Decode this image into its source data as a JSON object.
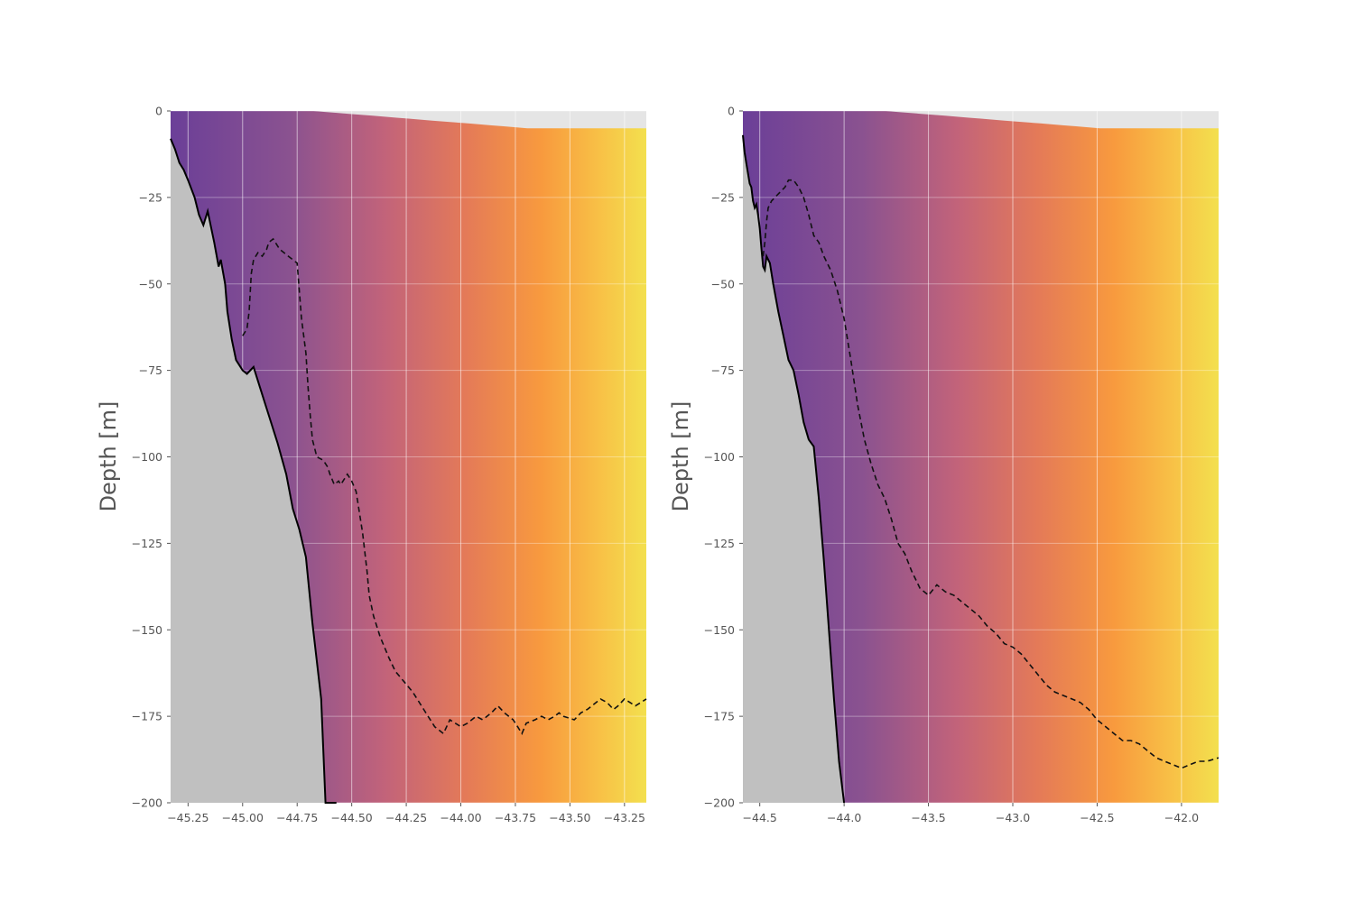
{
  "chart_data": [
    {
      "type": "heatmap",
      "title": "",
      "xlabel": "",
      "ylabel": "Depth [m]",
      "xlim": [
        -45.33,
        -43.15
      ],
      "ylim": [
        -200,
        0
      ],
      "grid": true,
      "colormap": "plasma-like (purple to orange to yellow)",
      "x_ticks": [
        -45.25,
        -45.0,
        -44.75,
        -44.5,
        -44.25,
        -44.0,
        -43.75,
        -43.5,
        -43.25
      ],
      "x_tick_labels": [
        "−45.25",
        "−45.00",
        "−44.75",
        "−44.50",
        "−44.25",
        "−44.00",
        "−43.75",
        "−43.50",
        "−43.25"
      ],
      "y_ticks": [
        0,
        -25,
        -50,
        -75,
        -100,
        -125,
        -150,
        -175,
        -200
      ],
      "y_tick_labels": [
        "0",
        "−25",
        "−50",
        "−75",
        "−100",
        "−125",
        "−150",
        "−175",
        "−200"
      ],
      "bathymetry_line": {
        "x": [
          -45.33,
          -45.31,
          -45.29,
          -45.27,
          -45.25,
          -45.22,
          -45.2,
          -45.18,
          -45.16,
          -45.15,
          -45.13,
          -45.11,
          -45.1,
          -45.08,
          -45.07,
          -45.05,
          -45.03,
          -45.01,
          -45.0,
          -44.98,
          -44.95,
          -44.92,
          -44.88,
          -44.84,
          -44.8,
          -44.77,
          -44.74,
          -44.71,
          -44.68,
          -44.64,
          -44.62,
          -44.6,
          -44.58,
          -44.57
        ],
        "y": [
          -8,
          -11,
          -15,
          -17,
          -20,
          -25,
          -30,
          -33,
          -29,
          -32,
          -38,
          -45,
          -43,
          -50,
          -58,
          -66,
          -72,
          -74,
          -75,
          -76,
          -74,
          -80,
          -88,
          -96,
          -105,
          -115,
          -121,
          -129,
          -148,
          -170,
          -200,
          -200,
          -200,
          -200
        ]
      },
      "isoline_dashed": {
        "x": [
          -45.0,
          -44.98,
          -44.97,
          -44.96,
          -44.95,
          -44.94,
          -44.93,
          -44.91,
          -44.89,
          -44.88,
          -44.86,
          -44.83,
          -44.79,
          -44.77,
          -44.75,
          -44.74,
          -44.73,
          -44.71,
          -44.7,
          -44.69,
          -44.68,
          -44.66,
          -44.63,
          -44.61,
          -44.6,
          -44.58,
          -44.56,
          -44.55,
          -44.52,
          -44.5,
          -44.48,
          -44.45,
          -44.43,
          -44.42,
          -44.4,
          -44.37,
          -44.33,
          -44.3,
          -44.26,
          -44.22,
          -44.17,
          -44.12,
          -44.08,
          -44.05,
          -44.0,
          -43.97,
          -43.93,
          -43.9,
          -43.86,
          -43.83,
          -43.8,
          -43.76,
          -43.74,
          -43.72,
          -43.7,
          -43.66,
          -43.63,
          -43.6,
          -43.57,
          -43.55,
          -43.53,
          -43.48,
          -43.45,
          -43.42,
          -43.4,
          -43.36,
          -43.33,
          -43.3,
          -43.28,
          -43.25,
          -43.2,
          -43.15
        ],
        "y": [
          -65,
          -63,
          -58,
          -47,
          -43,
          -42,
          -41,
          -42,
          -40,
          -38,
          -37,
          -40,
          -42,
          -43,
          -44,
          -52,
          -60,
          -70,
          -80,
          -88,
          -95,
          -100,
          -101,
          -103,
          -105,
          -108,
          -107,
          -108,
          -105,
          -107,
          -110,
          -122,
          -133,
          -140,
          -146,
          -152,
          -158,
          -162,
          -165,
          -168,
          -173,
          -178,
          -180,
          -176,
          -178,
          -177,
          -175,
          -176,
          -174,
          -172,
          -174,
          -176,
          -178,
          -180,
          -177,
          -176,
          -175,
          -176,
          -175,
          -174,
          -175,
          -176,
          -174,
          -173,
          -172,
          -170,
          -171,
          -173,
          -172,
          -170,
          -172,
          -170
        ]
      }
    },
    {
      "type": "heatmap",
      "title": "",
      "xlabel": "",
      "ylabel": "Depth [m]",
      "xlim": [
        -44.6,
        -41.78
      ],
      "ylim": [
        -200,
        0
      ],
      "grid": true,
      "colormap": "plasma-like (purple to orange to yellow)",
      "x_ticks": [
        -44.5,
        -44.0,
        -43.5,
        -43.0,
        -42.5,
        -42.0
      ],
      "x_tick_labels": [
        "−44.5",
        "−44.0",
        "−43.5",
        "−43.0",
        "−42.5",
        "−42.0"
      ],
      "y_ticks": [
        0,
        -25,
        -50,
        -75,
        -100,
        -125,
        -150,
        -175,
        -200
      ],
      "y_tick_labels": [
        "0",
        "−25",
        "−50",
        "−75",
        "−100",
        "−125",
        "−150",
        "−175",
        "−200"
      ],
      "bathymetry_line": {
        "x": [
          -44.6,
          -44.59,
          -44.58,
          -44.57,
          -44.56,
          -44.55,
          -44.54,
          -44.53,
          -44.52,
          -44.51,
          -44.5,
          -44.49,
          -44.48,
          -44.47,
          -44.46,
          -44.44,
          -44.42,
          -44.39,
          -44.36,
          -44.33,
          -44.3,
          -44.27,
          -44.24,
          -44.21,
          -44.18,
          -44.15,
          -44.12,
          -44.09,
          -44.06,
          -44.03,
          -44.0
        ],
        "y": [
          -7,
          -12,
          -15,
          -18,
          -21,
          -22,
          -26,
          -28,
          -27,
          -30,
          -34,
          -40,
          -45,
          -46,
          -42,
          -44,
          -50,
          -58,
          -65,
          -72,
          -75,
          -82,
          -90,
          -95,
          -97,
          -112,
          -130,
          -150,
          -170,
          -188,
          -200
        ]
      },
      "isoline_dashed": {
        "x": [
          -44.48,
          -44.47,
          -44.46,
          -44.45,
          -44.43,
          -44.41,
          -44.39,
          -44.37,
          -44.35,
          -44.33,
          -44.3,
          -44.27,
          -44.24,
          -44.21,
          -44.18,
          -44.15,
          -44.12,
          -44.08,
          -44.04,
          -44.0,
          -43.96,
          -43.92,
          -43.88,
          -43.84,
          -43.8,
          -43.76,
          -43.72,
          -43.68,
          -43.64,
          -43.6,
          -43.55,
          -43.5,
          -43.45,
          -43.4,
          -43.35,
          -43.3,
          -43.25,
          -43.2,
          -43.15,
          -43.1,
          -43.05,
          -43.0,
          -42.95,
          -42.9,
          -42.85,
          -42.8,
          -42.75,
          -42.7,
          -42.65,
          -42.6,
          -42.55,
          -42.5,
          -42.45,
          -42.4,
          -42.35,
          -42.3,
          -42.25,
          -42.2,
          -42.15,
          -42.1,
          -42.05,
          -42.0,
          -41.95,
          -41.9,
          -41.85,
          -41.78
        ],
        "y": [
          -42,
          -38,
          -32,
          -28,
          -26,
          -25,
          -24,
          -23,
          -22,
          -20,
          -20,
          -22,
          -25,
          -30,
          -36,
          -38,
          -42,
          -46,
          -52,
          -60,
          -72,
          -85,
          -95,
          -102,
          -108,
          -112,
          -118,
          -125,
          -128,
          -133,
          -138,
          -140,
          -137,
          -139,
          -140,
          -142,
          -144,
          -146,
          -149,
          -151,
          -154,
          -155,
          -157,
          -160,
          -163,
          -166,
          -168,
          -169,
          -170,
          -171,
          -173,
          -176,
          -178,
          -180,
          -182,
          -182,
          -183,
          -185,
          -187,
          -188,
          -189,
          -190,
          -189,
          -188,
          -188,
          -187
        ]
      }
    }
  ]
}
